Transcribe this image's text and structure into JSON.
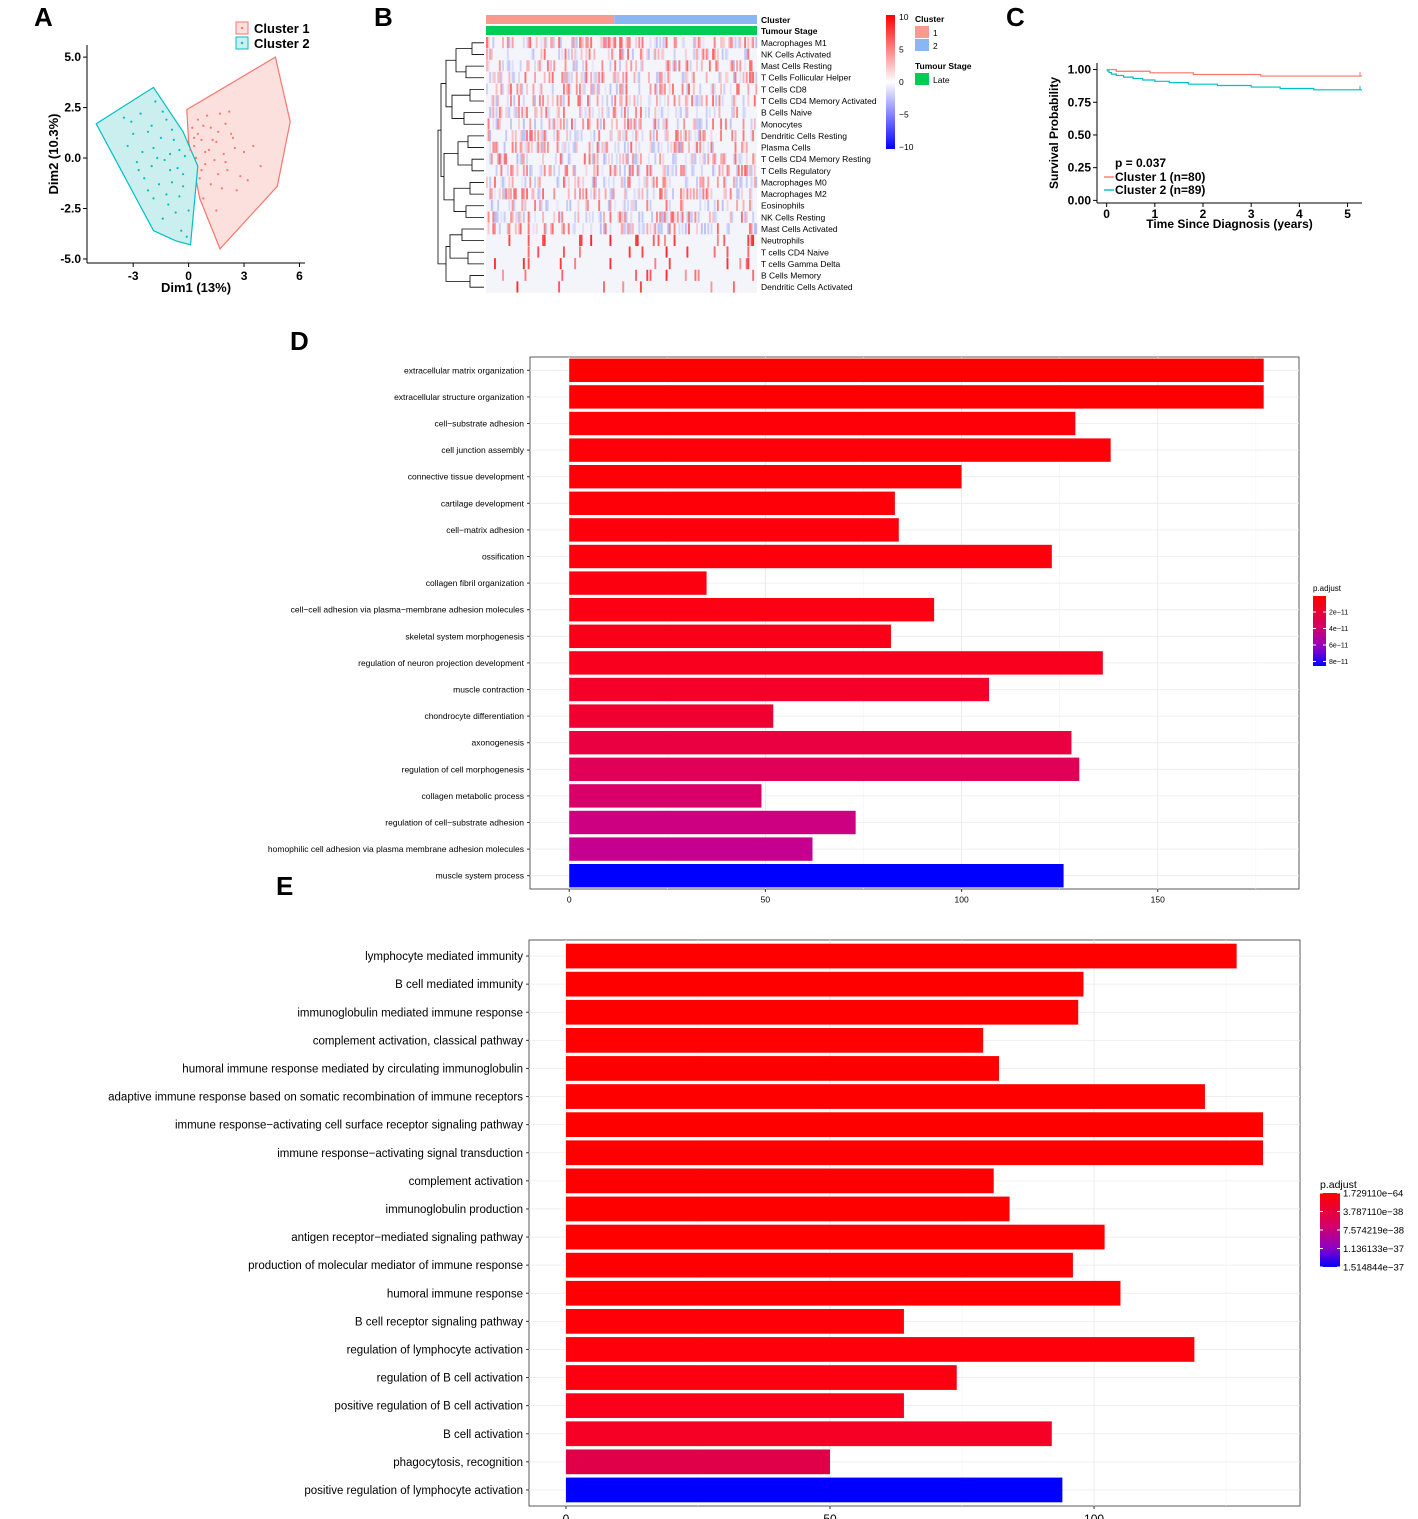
{
  "panel_letters": {
    "a": "A",
    "b": "B",
    "c": "C",
    "d": "D",
    "e": "E"
  },
  "colors": {
    "cluster1": "#F8766D",
    "cluster1_fill": "#FBE0DD",
    "cluster2": "#00BFC4",
    "cluster2_fill": "#CBEFEF",
    "cluster1_ann": "#F99A8E",
    "cluster2_ann": "#8BB6F4",
    "late": "#00CC55",
    "heat_high": "#FF0000",
    "heat_low": "#0000FF",
    "grid": "#EBEBEB"
  },
  "chart_data": [
    {
      "id": "A",
      "type": "scatter",
      "title": "",
      "xlabel": "Dim1 (13%)",
      "ylabel": "Dim2 (10.3%)",
      "xlim": [
        -5.5,
        6.3
      ],
      "ylim": [
        -5.2,
        5.6
      ],
      "xticks": [
        {
          "v": -3,
          "label": "-3"
        },
        {
          "v": 0,
          "label": "0"
        },
        {
          "v": 3,
          "label": "3"
        },
        {
          "v": 6,
          "label": "6"
        }
      ],
      "yticks": [
        {
          "v": 5,
          "label": "5.0"
        },
        {
          "v": 2.5,
          "label": "2.5"
        },
        {
          "v": 0,
          "label": "0.0"
        },
        {
          "v": -2.5,
          "label": "-2.5"
        },
        {
          "v": -5,
          "label": "-5.0"
        }
      ],
      "legend": [
        {
          "name": "Cluster 1",
          "color": "#F8766D"
        },
        {
          "name": "Cluster 2",
          "color": "#00BFC4"
        }
      ],
      "hulls": [
        {
          "series": "Cluster 1",
          "points": [
            [
              4.7,
              5.0
            ],
            [
              5.5,
              1.8
            ],
            [
              4.8,
              -1.4
            ],
            [
              1.7,
              -4.5
            ],
            [
              0.6,
              -2.0
            ],
            [
              0.0,
              0.8
            ],
            [
              -0.1,
              2.4
            ]
          ]
        },
        {
          "series": "Cluster 2",
          "points": [
            [
              -5.0,
              1.7
            ],
            [
              -1.9,
              3.5
            ],
            [
              -0.3,
              1.3
            ],
            [
              0.5,
              -0.4
            ],
            [
              0.1,
              -4.3
            ],
            [
              -0.7,
              -4.1
            ],
            [
              -1.9,
              -3.6
            ]
          ]
        }
      ],
      "series": [
        {
          "name": "Cluster 1",
          "color": "#F8766D",
          "points": [
            [
              0.5,
              1.2
            ],
            [
              0.8,
              1.6
            ],
            [
              1.2,
              1.5
            ],
            [
              1.6,
              1.3
            ],
            [
              2.0,
              1.7
            ],
            [
              2.4,
              1.0
            ],
            [
              0.3,
              0.6
            ],
            [
              0.7,
              0.9
            ],
            [
              1.1,
              0.4
            ],
            [
              1.5,
              0.8
            ],
            [
              1.9,
              0.2
            ],
            [
              2.5,
              0.5
            ],
            [
              3.0,
              0.3
            ],
            [
              0.4,
              0.0
            ],
            [
              0.9,
              -0.3
            ],
            [
              1.4,
              -0.1
            ],
            [
              2.1,
              -0.6
            ],
            [
              2.8,
              -0.9
            ],
            [
              0.6,
              -1.0
            ],
            [
              1.2,
              -1.3
            ],
            [
              1.8,
              -1.5
            ],
            [
              0.5,
              1.9
            ],
            [
              1.0,
              2.1
            ],
            [
              1.7,
              2.2
            ],
            [
              2.2,
              2.3
            ],
            [
              0.2,
              1.5
            ],
            [
              3.5,
              0.6
            ],
            [
              3.9,
              -0.4
            ],
            [
              1.5,
              -2.6
            ],
            [
              0.8,
              -2.0
            ],
            [
              2.6,
              -1.6
            ],
            [
              0.1,
              0.4
            ],
            [
              1.3,
              0.9
            ],
            [
              0.9,
              0.3
            ],
            [
              2.0,
              -0.2
            ],
            [
              3.2,
              -1.1
            ],
            [
              0.7,
              -0.6
            ],
            [
              1.6,
              -0.8
            ],
            [
              0.3,
              1.0
            ],
            [
              2.3,
              1.2
            ]
          ]
        },
        {
          "name": "Cluster 2",
          "color": "#00BFC4",
          "points": [
            [
              -3.5,
              2.0
            ],
            [
              -2.6,
              2.2
            ],
            [
              -1.8,
              2.8
            ],
            [
              -1.2,
              1.9
            ],
            [
              -3.0,
              1.2
            ],
            [
              -2.2,
              1.3
            ],
            [
              -1.5,
              1.0
            ],
            [
              -0.8,
              0.9
            ],
            [
              -3.3,
              0.6
            ],
            [
              -2.5,
              0.3
            ],
            [
              -1.9,
              0.5
            ],
            [
              -1.0,
              0.2
            ],
            [
              -0.5,
              0.4
            ],
            [
              -2.8,
              -0.2
            ],
            [
              -2.0,
              -0.4
            ],
            [
              -1.3,
              -0.1
            ],
            [
              -0.6,
              -0.5
            ],
            [
              -2.4,
              -1.0
            ],
            [
              -1.6,
              -1.3
            ],
            [
              -0.9,
              -1.2
            ],
            [
              -0.3,
              -0.8
            ],
            [
              -1.9,
              -2.0
            ],
            [
              -1.1,
              -2.3
            ],
            [
              -0.5,
              -1.9
            ],
            [
              -1.4,
              -3.0
            ],
            [
              -0.4,
              -3.6
            ],
            [
              0.0,
              -2.6
            ],
            [
              -3.1,
              1.8
            ],
            [
              -2.0,
              1.6
            ],
            [
              -1.4,
              2.3
            ],
            [
              -0.9,
              1.4
            ],
            [
              -0.2,
              0.1
            ],
            [
              -2.7,
              -0.6
            ],
            [
              -1.7,
              0.0
            ],
            [
              -1.0,
              -0.6
            ],
            [
              -0.3,
              -1.4
            ],
            [
              -1.2,
              -1.8
            ],
            [
              -0.7,
              -2.7
            ],
            [
              -2.2,
              -1.6
            ],
            [
              -0.1,
              -3.9
            ]
          ]
        }
      ]
    },
    {
      "id": "B",
      "type": "heatmap",
      "title": "",
      "rows": [
        "Macrophages M1",
        "NK Cells Activated",
        "Mast Cells Resting",
        "T Cells Follicular Helper",
        "T Cells CD8",
        "T Cells CD4 Memory Activated",
        "B Cells Naive",
        "Monocytes",
        "Dendritic Cells Resting",
        "Plasma Cells",
        "T Cells CD4 Memory Resting",
        "T Cells Regulatory",
        "Macrophages M0",
        "Macrophages M2",
        "Eosinophils",
        "NK Cells Resting",
        "Mast Cells Activated",
        "Neutrophils",
        "T cells CD4 Naive",
        "T cells Gamma Delta",
        "B Cells Memory",
        "Dendritic Cells Activated"
      ],
      "n_samples": 169,
      "annotation_rows": [
        {
          "name": "Cluster",
          "segments": [
            {
              "label": "1",
              "count": 80
            },
            {
              "label": "2",
              "count": 89
            }
          ]
        },
        {
          "name": "Tumour Stage",
          "segments": [
            {
              "label": "Late",
              "count": 169
            }
          ]
        }
      ],
      "color_scale": {
        "min": -10,
        "max": 10,
        "ticks": [
          10,
          5,
          0,
          -5,
          -10
        ]
      },
      "legend": [
        {
          "title": "Cluster",
          "items": [
            {
              "label": "1",
              "color": "#F99A8E"
            },
            {
              "label": "2",
              "color": "#8BB6F4"
            }
          ]
        },
        {
          "title": "Tumour Stage",
          "items": [
            {
              "label": "Late",
              "color": "#00CC55"
            }
          ]
        }
      ],
      "row_intensity": [
        0.45,
        0.35,
        0.3,
        0.35,
        0.3,
        0.35,
        0.3,
        0.3,
        0.3,
        0.35,
        0.3,
        0.35,
        0.3,
        0.3,
        0.25,
        0.3,
        0.3,
        0.3,
        0.15,
        0.2,
        0.2,
        0.35
      ],
      "row_sparse": [
        false,
        false,
        false,
        false,
        false,
        false,
        false,
        false,
        false,
        false,
        false,
        false,
        false,
        false,
        false,
        false,
        false,
        true,
        true,
        true,
        true,
        true
      ]
    },
    {
      "id": "C",
      "type": "line",
      "title": "",
      "xlabel": "Time Since Diagnosis (years)",
      "ylabel": "Survival Probability",
      "xlim": [
        -0.2,
        5.3
      ],
      "ylim": [
        -0.02,
        1.05
      ],
      "xticks": [
        0,
        1,
        2,
        3,
        4,
        5
      ],
      "yticks": [
        {
          "v": 1.0,
          "label": "1.00"
        },
        {
          "v": 0.75,
          "label": "0.75"
        },
        {
          "v": 0.5,
          "label": "0.50"
        },
        {
          "v": 0.25,
          "label": "0.25"
        },
        {
          "v": 0.0,
          "label": "0.00"
        }
      ],
      "annotation": "p = 0.037",
      "series": [
        {
          "name": "Cluster 1 (n=80)",
          "color": "#F8766D",
          "steps": [
            [
              0,
              1.0
            ],
            [
              0.2,
              0.987
            ],
            [
              0.9,
              0.975
            ],
            [
              1.8,
              0.962
            ],
            [
              3.2,
              0.95
            ],
            [
              5.3,
              0.95
            ]
          ]
        },
        {
          "name": "Cluster 2 (n=89)",
          "color": "#00BFC4",
          "steps": [
            [
              0,
              0.99
            ],
            [
              0.05,
              0.977
            ],
            [
              0.1,
              0.965
            ],
            [
              0.2,
              0.955
            ],
            [
              0.35,
              0.942
            ],
            [
              0.55,
              0.932
            ],
            [
              0.75,
              0.92
            ],
            [
              1.0,
              0.91
            ],
            [
              1.3,
              0.9
            ],
            [
              1.7,
              0.888
            ],
            [
              2.3,
              0.878
            ],
            [
              3.0,
              0.866
            ],
            [
              3.6,
              0.855
            ],
            [
              4.3,
              0.845
            ],
            [
              5.3,
              0.845
            ]
          ]
        }
      ]
    },
    {
      "id": "D",
      "type": "bar",
      "orientation": "horizontal",
      "title": "",
      "categories": [
        "extracellular matrix organization",
        "extracellular structure organization",
        "cell−substrate adhesion",
        "cell junction assembly",
        "connective tissue development",
        "cartilage development",
        "cell−matrix adhesion",
        "ossification",
        "collagen fibril organization",
        "cell−cell adhesion via plasma−membrane adhesion molecules",
        "skeletal system morphogenesis",
        "regulation of neuron projection development",
        "muscle contraction",
        "chondrocyte differentiation",
        "axonogenesis",
        "regulation of cell morphogenesis",
        "collagen metabolic process",
        "regulation of cell−substrate adhesion",
        "homophilic cell adhesion via plasma membrane adhesion molecules",
        "muscle system process"
      ],
      "values": [
        177,
        177,
        129,
        138,
        100,
        83,
        84,
        123,
        35,
        93,
        82,
        136,
        107,
        52,
        128,
        130,
        49,
        73,
        62,
        126
      ],
      "bar_colors": [
        "#FF0000",
        "#FF0000",
        "#FE0008",
        "#FE0008",
        "#FE0008",
        "#FE0008",
        "#FE000C",
        "#FE000C",
        "#FD0010",
        "#FC0014",
        "#FA0018",
        "#F8001E",
        "#F50028",
        "#F00030",
        "#EA0040",
        "#E00058",
        "#D80068",
        "#CC0080",
        "#C50090",
        "#0000FF"
      ],
      "xlim": [
        -10,
        186
      ],
      "xticks": [
        0,
        50,
        100,
        150
      ],
      "legend_title": "p.adjust",
      "legend_ticks": [
        "2e−11",
        "4e−11",
        "6e−11",
        "8e−11"
      ]
    },
    {
      "id": "E",
      "type": "bar",
      "orientation": "horizontal",
      "title": "",
      "categories": [
        "lymphocyte mediated immunity",
        "B cell mediated immunity",
        "immunoglobulin mediated immune response",
        "complement activation, classical pathway",
        "humoral immune response mediated by circulating immunoglobulin",
        "adaptive immune response based on somatic recombination of immune receptors",
        "immune response−activating cell surface receptor signaling pathway",
        "immune response−activating signal transduction",
        "complement activation",
        "immunoglobulin production",
        "antigen receptor−mediated signaling pathway",
        "production of molecular mediator of immune response",
        "humoral immune response",
        "B cell receptor signaling pathway",
        "regulation of lymphocyte activation",
        "regulation of B cell activation",
        "positive regulation of B cell activation",
        "B cell activation",
        "phagocytosis, recognition",
        "positive regulation of lymphocyte activation"
      ],
      "values": [
        127,
        98,
        97,
        79,
        82,
        121,
        132,
        132,
        81,
        84,
        102,
        96,
        105,
        64,
        119,
        74,
        64,
        92,
        50,
        94
      ],
      "bar_colors": [
        "#FF0000",
        "#FF0000",
        "#FF0000",
        "#FF0000",
        "#FF0000",
        "#FF0000",
        "#FF0000",
        "#FF0000",
        "#FF0000",
        "#FF0000",
        "#FF0000",
        "#FF0000",
        "#FE0004",
        "#FE0008",
        "#FD000C",
        "#FC0012",
        "#FA001A",
        "#F60026",
        "#E0004A",
        "#0000FF"
      ],
      "xlim": [
        -7,
        139
      ],
      "xticks": [
        0,
        50,
        100
      ],
      "legend_title": "p.adjust",
      "legend_ticks": [
        "1.729110e−64",
        "3.787110e−38",
        "7.574219e−38",
        "1.136133e−37",
        "1.514844e−37"
      ]
    }
  ]
}
